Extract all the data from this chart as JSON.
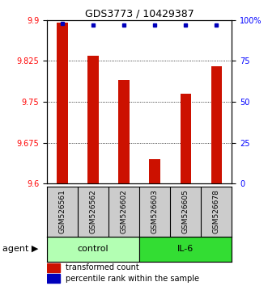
{
  "title": "GDS3773 / 10429387",
  "samples": [
    "GSM526561",
    "GSM526562",
    "GSM526602",
    "GSM526603",
    "GSM526605",
    "GSM526678"
  ],
  "bar_values": [
    9.895,
    9.835,
    9.79,
    9.645,
    9.765,
    9.815
  ],
  "percentile_values": [
    98,
    97,
    97,
    97,
    97,
    97
  ],
  "ylim_left": [
    9.6,
    9.9
  ],
  "ylim_right": [
    0,
    100
  ],
  "yticks_left": [
    9.6,
    9.675,
    9.75,
    9.825,
    9.9
  ],
  "ytick_labels_left": [
    "9.6",
    "9.675",
    "9.75",
    "9.825",
    "9.9"
  ],
  "yticks_right": [
    0,
    25,
    50,
    75,
    100
  ],
  "ytick_labels_right": [
    "0",
    "25",
    "50",
    "75",
    "100%"
  ],
  "groups": [
    {
      "label": "control",
      "indices": [
        0,
        1,
        2
      ],
      "color": "#b3ffb3"
    },
    {
      "label": "IL-6",
      "indices": [
        3,
        4,
        5
      ],
      "color": "#33dd33"
    }
  ],
  "agent_label": "agent",
  "bar_color": "#cc1100",
  "dot_color": "#0000bb",
  "bar_width": 0.35,
  "legend_bar_label": "transformed count",
  "legend_dot_label": "percentile rank within the sample",
  "title_fontsize": 9,
  "tick_fontsize": 7,
  "sample_label_fontsize": 6.5,
  "group_label_fontsize": 8,
  "legend_fontsize": 7
}
